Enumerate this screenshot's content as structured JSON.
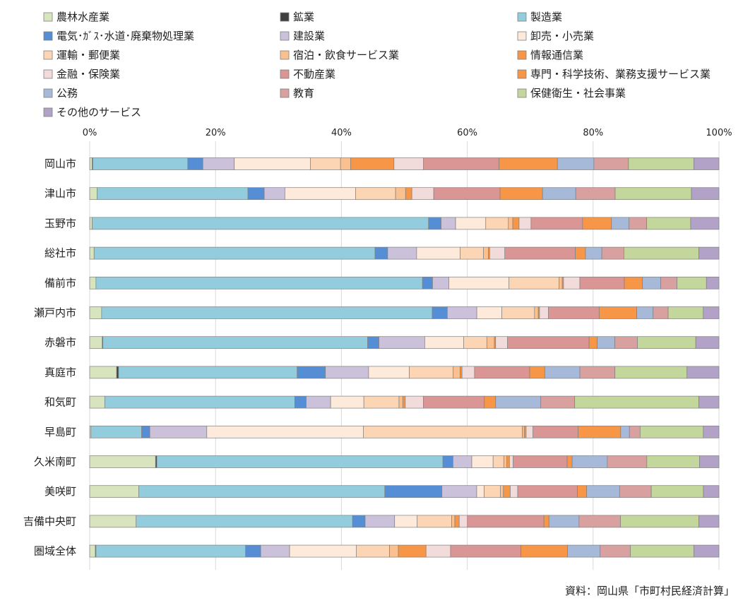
{
  "chart_data": {
    "type": "bar",
    "orientation": "horizontal",
    "stacked": "percent",
    "xlim": [
      0,
      100
    ],
    "x_ticks": [
      "0%",
      "20%",
      "40%",
      "60%",
      "80%",
      "100%"
    ],
    "grid": true,
    "legend_position": "top",
    "source": "資料：岡山県「市町村民経済計算」",
    "categories": [
      "岡山市",
      "津山市",
      "玉野市",
      "総社市",
      "備前市",
      "瀬戸内市",
      "赤磐市",
      "真庭市",
      "和気町",
      "早島町",
      "久米南町",
      "美咲町",
      "吉備中央町",
      "圏域全体"
    ],
    "series": [
      {
        "name": "農林水産業",
        "color": "#d7e4bd",
        "values": [
          0.4,
          1.2,
          0.4,
          0.7,
          1.0,
          1.9,
          2.0,
          4.3,
          2.4,
          0.2,
          10.5,
          7.9,
          7.4,
          0.9
        ]
      },
      {
        "name": "鉱業",
        "color": "#404040",
        "values": [
          0.1,
          0.0,
          0.0,
          0.0,
          0.0,
          0.0,
          0.1,
          0.3,
          0.0,
          0.0,
          0.2,
          0.0,
          0.0,
          0.1
        ]
      },
      {
        "name": "製造業",
        "color": "#93cddd",
        "values": [
          15.1,
          24.1,
          53.5,
          44.6,
          52.1,
          52.7,
          42.2,
          28.5,
          30.3,
          8.1,
          45.6,
          39.6,
          34.5,
          23.8
        ]
      },
      {
        "name": "電気･ｶﾞｽ･水道･廃棄物処理業",
        "color": "#558ed5",
        "values": [
          2.4,
          2.6,
          2.0,
          2.0,
          1.6,
          2.4,
          1.8,
          4.5,
          1.8,
          1.3,
          1.6,
          9.2,
          2.0,
          2.4
        ]
      },
      {
        "name": "建設業",
        "color": "#ccc1da",
        "values": [
          5.0,
          3.3,
          2.3,
          4.6,
          2.6,
          4.7,
          7.3,
          6.9,
          3.9,
          9.1,
          3.0,
          5.6,
          4.7,
          4.6
        ]
      },
      {
        "name": "卸売・小売業",
        "color": "#fdeada",
        "values": [
          12.1,
          11.3,
          4.8,
          6.9,
          9.6,
          4.0,
          6.2,
          6.5,
          5.3,
          25.0,
          3.4,
          1.2,
          3.6,
          10.6
        ]
      },
      {
        "name": "運輸・郵便業",
        "color": "#fcd5b5",
        "values": [
          4.8,
          6.4,
          3.6,
          3.7,
          8.0,
          5.2,
          3.7,
          7.0,
          5.6,
          25.4,
          1.7,
          2.6,
          5.5,
          5.3
        ]
      },
      {
        "name": "宿泊・飲食サービス業",
        "color": "#fac090",
        "values": [
          1.6,
          1.6,
          0.7,
          0.8,
          0.5,
          0.6,
          1.2,
          1.1,
          0.6,
          0.3,
          0.5,
          0.5,
          0.5,
          1.4
        ]
      },
      {
        "name": "情報通信業",
        "color": "#f79646",
        "values": [
          6.9,
          1.0,
          1.0,
          0.2,
          0.2,
          0.2,
          0.2,
          0.3,
          0.4,
          0.3,
          0.4,
          1.1,
          0.7,
          4.4
        ]
      },
      {
        "name": "金融・保険業",
        "color": "#f2dcdb",
        "values": [
          4.7,
          3.5,
          1.9,
          2.4,
          2.6,
          1.4,
          1.9,
          2.0,
          2.9,
          1.1,
          0.6,
          1.2,
          1.3,
          3.9
        ]
      },
      {
        "name": "不動産業",
        "color": "#d99694",
        "values": [
          12.0,
          10.6,
          8.2,
          11.2,
          7.1,
          8.1,
          13.0,
          8.8,
          9.7,
          7.2,
          8.6,
          9.6,
          12.2,
          11.2
        ]
      },
      {
        "name": "専門・科学技術、業務支援サービス業",
        "color": "#f79646",
        "values": [
          9.3,
          6.8,
          4.6,
          1.6,
          2.9,
          6.0,
          1.3,
          2.4,
          1.8,
          6.8,
          0.8,
          1.5,
          0.8,
          7.4
        ]
      },
      {
        "name": "公務",
        "color": "#a6b9d9",
        "values": [
          5.8,
          5.3,
          2.8,
          2.6,
          2.9,
          2.6,
          2.8,
          5.6,
          7.2,
          1.4,
          5.6,
          5.3,
          4.8,
          5.2
        ]
      },
      {
        "name": "教育",
        "color": "#d9a0a0",
        "values": [
          5.5,
          6.3,
          2.8,
          3.5,
          2.6,
          2.4,
          3.6,
          5.6,
          5.4,
          1.7,
          6.3,
          5.1,
          6.6,
          4.8
        ]
      },
      {
        "name": "保健衛生・社会事業",
        "color": "#c3d69b",
        "values": [
          10.4,
          12.2,
          7.0,
          11.9,
          4.7,
          5.6,
          9.3,
          11.5,
          19.8,
          10.1,
          8.4,
          8.4,
          12.5,
          10.1
        ]
      },
      {
        "name": "その他のサービス",
        "color": "#b2a2c7",
        "values": [
          4.0,
          4.4,
          4.5,
          3.2,
          2.0,
          2.5,
          3.7,
          5.1,
          3.2,
          2.5,
          3.1,
          2.5,
          3.2,
          4.0
        ]
      }
    ]
  }
}
